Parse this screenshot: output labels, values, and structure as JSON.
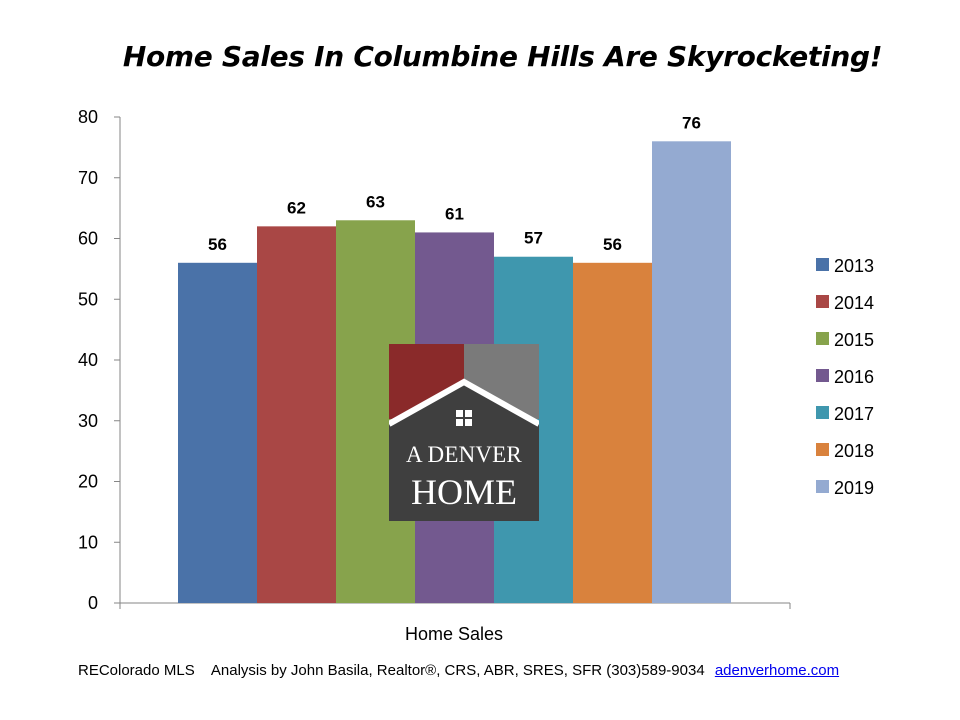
{
  "title": "Home Sales In Columbine Hills Are Skyrocketing!",
  "chart_data": {
    "type": "bar",
    "title": "Home Sales In Columbine Hills Are Skyrocketing!",
    "xlabel": "Home Sales",
    "ylabel": "",
    "categories": [
      "Home Sales"
    ],
    "ylim": [
      0,
      80
    ],
    "yticks": [
      0,
      10,
      20,
      30,
      40,
      50,
      60,
      70,
      80
    ],
    "grid": false,
    "legend": "right",
    "data_labels": true,
    "series": [
      {
        "name": "2013",
        "values": [
          56
        ],
        "color": "#4a72a8"
      },
      {
        "name": "2014",
        "values": [
          62
        ],
        "color": "#a94745"
      },
      {
        "name": "2015",
        "values": [
          63
        ],
        "color": "#87a34c"
      },
      {
        "name": "2016",
        "values": [
          61
        ],
        "color": "#73598f"
      },
      {
        "name": "2017",
        "values": [
          57
        ],
        "color": "#3f97ae"
      },
      {
        "name": "2018",
        "values": [
          56
        ],
        "color": "#d9823d"
      },
      {
        "name": "2019",
        "values": [
          76
        ],
        "color": "#94aad1"
      }
    ]
  },
  "logo": {
    "line1": "A DENVER",
    "line2": "HOME",
    "colors": {
      "roof_left": "#8a2a2a",
      "roof_right": "#7a7a7a",
      "house": "#3f3f3f"
    }
  },
  "footer": {
    "source": "REColorado MLS",
    "credit": "Analysis by John Basila, Realtor®, CRS, ABR, SRES, SFR (303)589-9034",
    "link": "adenverhome.com"
  }
}
